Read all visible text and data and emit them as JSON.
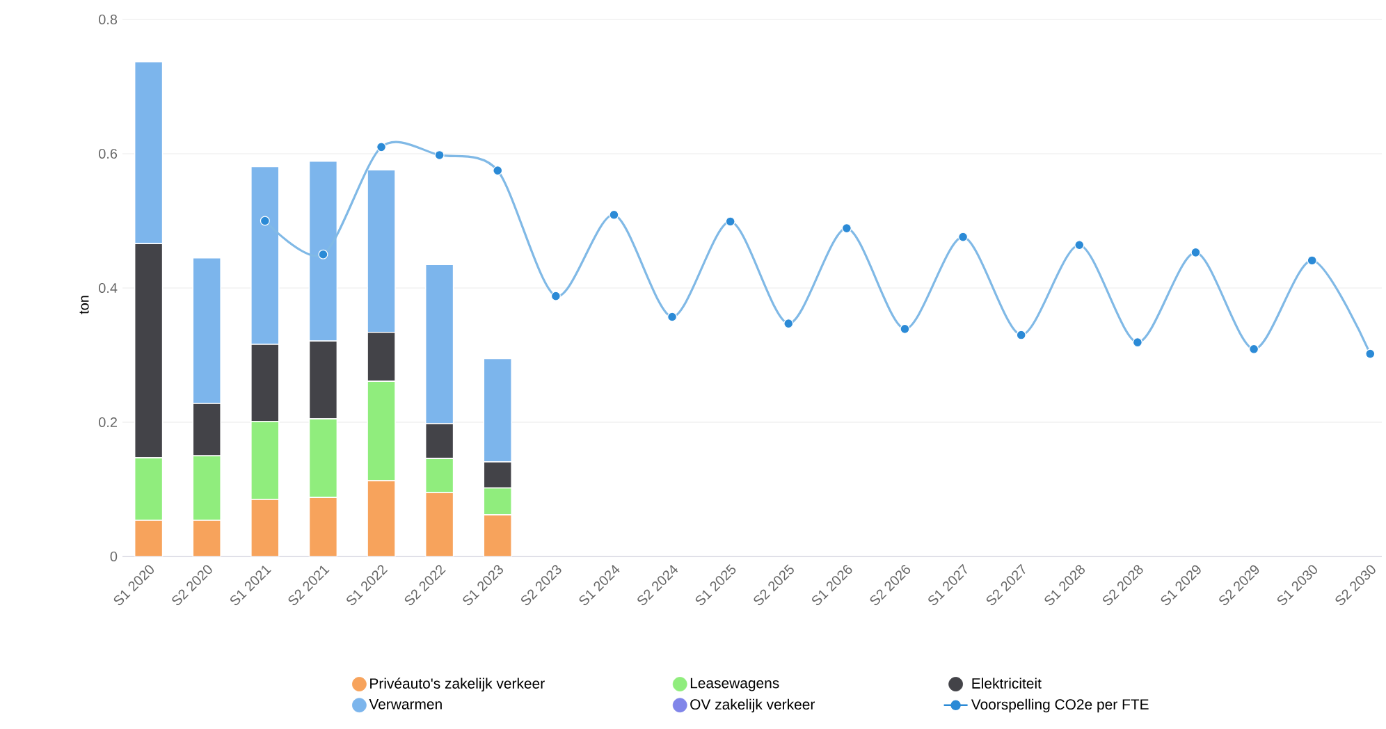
{
  "chart_data": {
    "type": "bar",
    "stacked": true,
    "ylabel": "ton",
    "categories": [
      "S1 2020",
      "S2 2020",
      "S1 2021",
      "S2 2021",
      "S1 2022",
      "S2 2022",
      "S1 2023",
      "S2 2023",
      "S1 2024",
      "S2 2024",
      "S1 2025",
      "S2 2025",
      "S1 2026",
      "S2 2026",
      "S1 2027",
      "S2 2027",
      "S1 2028",
      "S2 2028",
      "S1 2029",
      "S2 2029",
      "S1 2030",
      "S2 2030"
    ],
    "series": [
      {
        "name": "Privéauto's zakelijk verkeer",
        "color": "#f7a35c",
        "values": [
          0.054,
          0.054,
          0.085,
          0.088,
          0.113,
          0.095,
          0.062,
          null,
          null,
          null,
          null,
          null,
          null,
          null,
          null,
          null,
          null,
          null,
          null,
          null,
          null,
          null
        ]
      },
      {
        "name": "Leasewagens",
        "color": "#90ed7d",
        "values": [
          0.093,
          0.096,
          0.116,
          0.117,
          0.148,
          0.051,
          0.04,
          null,
          null,
          null,
          null,
          null,
          null,
          null,
          null,
          null,
          null,
          null,
          null,
          null,
          null,
          null
        ]
      },
      {
        "name": "Elektriciteit",
        "color": "#434348",
        "values": [
          0.319,
          0.078,
          0.115,
          0.116,
          0.073,
          0.052,
          0.039,
          null,
          null,
          null,
          null,
          null,
          null,
          null,
          null,
          null,
          null,
          null,
          null,
          null,
          null,
          null
        ]
      },
      {
        "name": "Verwarmen",
        "color": "#7cb5ec",
        "values": [
          0.271,
          0.217,
          0.265,
          0.268,
          0.242,
          0.237,
          0.154,
          null,
          null,
          null,
          null,
          null,
          null,
          null,
          null,
          null,
          null,
          null,
          null,
          null,
          null,
          null
        ]
      },
      {
        "name": "OV zakelijk verkeer",
        "color": "#8085e9",
        "values": [
          null,
          null,
          null,
          null,
          null,
          null,
          null,
          null,
          null,
          null,
          null,
          null,
          null,
          null,
          null,
          null,
          null,
          null,
          null,
          null,
          null,
          null
        ]
      },
      {
        "name": "Voorspelling CO2e per FTE",
        "type": "line",
        "color": "#2b8ad6",
        "marker": "circle",
        "values": [
          null,
          null,
          0.5,
          0.45,
          0.61,
          0.598,
          0.575,
          0.388,
          0.509,
          0.357,
          0.499,
          0.347,
          0.489,
          0.339,
          0.476,
          0.33,
          0.464,
          0.319,
          0.453,
          0.309,
          0.441,
          0.302
        ]
      }
    ],
    "ylim": [
      0,
      0.8
    ],
    "yticks": [
      0,
      0.2,
      0.4,
      0.6,
      0.8
    ],
    "grid": "y",
    "legend": "bottom"
  }
}
